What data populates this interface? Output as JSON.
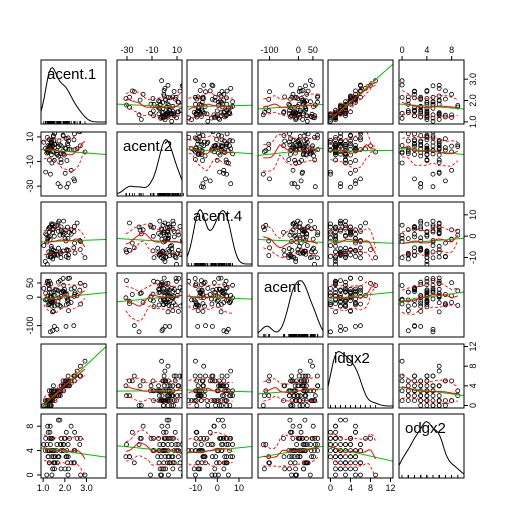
{
  "chart_data": {
    "type": "scatter",
    "subtype": "scatterplot-matrix",
    "title": "",
    "variables": [
      {
        "name": "acent.1",
        "range": [
          0.9,
          3.9
        ],
        "ticks": [
          1.0,
          2.0,
          3.0
        ],
        "tick_labels": [
          "1.0",
          "2.0",
          "3.0"
        ]
      },
      {
        "name": "acent.2",
        "range": [
          -38,
          14
        ],
        "ticks": [
          -30,
          -10,
          10
        ],
        "tick_labels": [
          "-30",
          "-10",
          "10"
        ]
      },
      {
        "name": "acent.4",
        "range": [
          -14,
          16
        ],
        "ticks": [
          -10,
          0,
          10
        ],
        "tick_labels": [
          "-10",
          "0",
          "10"
        ]
      },
      {
        "name": "acent",
        "range": [
          -140,
          85
        ],
        "ticks": [
          -100,
          0,
          50
        ],
        "tick_labels": [
          "-100",
          "0",
          "50"
        ]
      },
      {
        "name": "idgx2",
        "range": [
          -0.5,
          12.5
        ],
        "ticks": [
          0,
          4,
          8,
          12
        ],
        "tick_labels": [
          "0",
          "4",
          "8",
          "12"
        ]
      },
      {
        "name": "odgx2",
        "range": [
          -0.5,
          10
        ],
        "ticks": [
          0,
          4,
          8
        ],
        "tick_labels": [
          "0",
          "4",
          "8"
        ]
      }
    ],
    "diagonal": "density",
    "panel_features": [
      "points",
      "linear-fit (green)",
      "smoother (red)",
      "spread (red dashed)"
    ],
    "colors": {
      "points": "#000000",
      "linear_fit": "#00c000",
      "smoother": "#ff0000",
      "frame": "#000000"
    },
    "grid": false,
    "legend": "none"
  }
}
